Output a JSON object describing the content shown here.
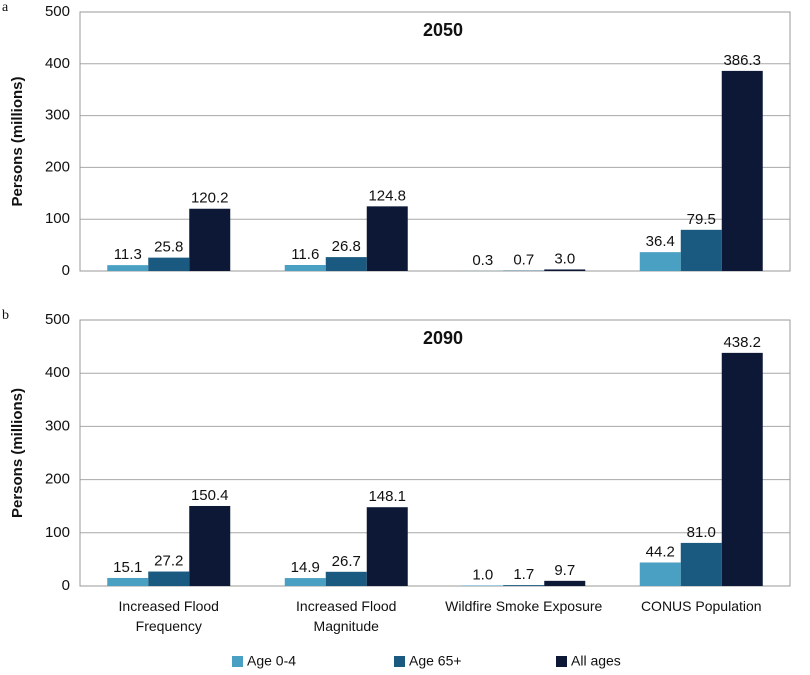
{
  "chart_data": [
    {
      "type": "bar",
      "panel_label": "a",
      "title": "2050",
      "ylabel": "Persons (millions)",
      "categories": [
        null,
        null,
        null,
        null
      ],
      "series": [
        {
          "color": "#4aa0c2",
          "values": [
            11.3,
            11.6,
            0.3,
            36.4
          ],
          "value_labels": [
            "11.3",
            "11.6",
            "0.3",
            "36.4"
          ]
        },
        {
          "color": "#1b5a80",
          "values": [
            25.8,
            26.8,
            0.7,
            79.5
          ],
          "value_labels": [
            "25.8",
            "26.8",
            "0.7",
            "79.5"
          ]
        },
        {
          "color": "#0c1836",
          "values": [
            120.2,
            124.8,
            3.0,
            386.3
          ],
          "value_labels": [
            "120.2",
            "124.8",
            "3.0",
            "386.3"
          ]
        }
      ],
      "ylim": [
        0,
        500
      ],
      "yticks": [
        0,
        100,
        200,
        300,
        400,
        500
      ],
      "grid": true
    },
    {
      "type": "bar",
      "panel_label": "b",
      "title": "2090",
      "ylabel": "Persons (millions)",
      "categories": [
        "Increased Flood Frequency",
        "Increased Flood Magnitude",
        "Wildfire Smoke Exposure",
        "CONUS Population"
      ],
      "series": [
        {
          "name": "Age 0-4",
          "color": "#4aa0c2",
          "values": [
            15.1,
            14.9,
            1.0,
            44.2
          ],
          "value_labels": [
            "15.1",
            "14.9",
            "1.0",
            "44.2"
          ]
        },
        {
          "name": "Age 65+",
          "color": "#1b5a80",
          "values": [
            27.2,
            26.7,
            1.7,
            81.0
          ],
          "value_labels": [
            "27.2",
            "26.7",
            "1.7",
            "81.0"
          ]
        },
        {
          "name": "All ages",
          "color": "#0c1836",
          "values": [
            150.4,
            148.1,
            9.7,
            438.2
          ],
          "value_labels": [
            "150.4",
            "148.1",
            "9.7",
            "438.2"
          ]
        }
      ],
      "ylim": [
        0,
        500
      ],
      "yticks": [
        0,
        100,
        200,
        300,
        400,
        500
      ],
      "grid": true
    }
  ]
}
